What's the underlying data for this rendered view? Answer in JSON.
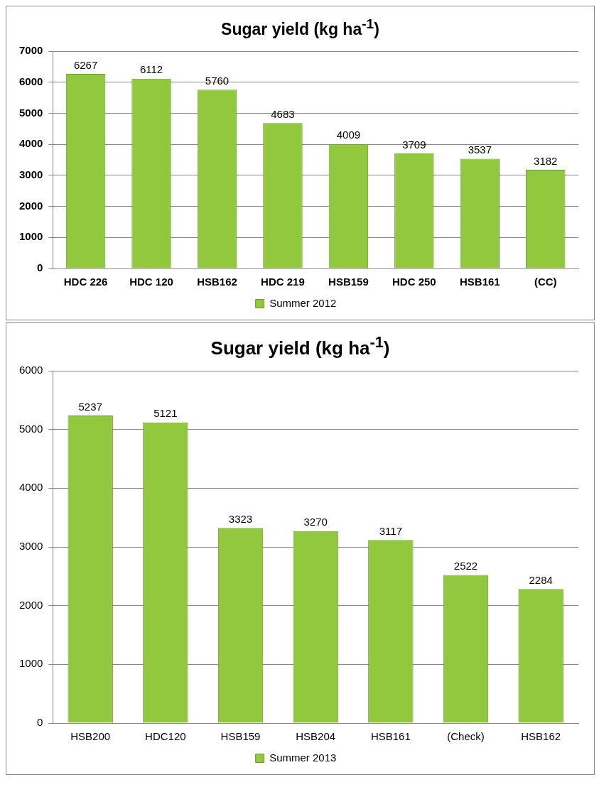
{
  "chart_data": [
    {
      "type": "bar",
      "title": "Sugar yield  (kg ha$^{-1}$)",
      "categories": [
        "HDC 226",
        "HDC 120",
        "HSB162",
        "HDC 219",
        "HSB159",
        "HDC 250",
        "HSB161",
        "(CC)"
      ],
      "series": [
        {
          "name": "Summer 2012",
          "color": "#92c83e",
          "values": [
            6267,
            6112,
            5760,
            4683,
            4009,
            3709,
            3537,
            3182
          ]
        }
      ],
      "ylim": [
        0,
        7000
      ],
      "yticks": [
        0,
        1000,
        2000,
        3000,
        4000,
        5000,
        6000,
        7000
      ],
      "grid": "y",
      "legend": "bottom",
      "data_labels": true
    },
    {
      "type": "bar",
      "title": "Sugar yield (kg ha$^{-1}$)",
      "categories": [
        "HSB200",
        "HDC120",
        "HSB159",
        "HSB204",
        "HSB161",
        "(Check)",
        "HSB162"
      ],
      "series": [
        {
          "name": "Summer 2013",
          "color": "#92c83e",
          "values": [
            5237,
            5121,
            3323,
            3270,
            3117,
            2522,
            2284
          ]
        }
      ],
      "ylim": [
        0,
        6000
      ],
      "yticks": [
        0,
        1000,
        2000,
        3000,
        4000,
        5000,
        6000
      ],
      "grid": "y",
      "legend": "bottom",
      "data_labels": true
    }
  ]
}
